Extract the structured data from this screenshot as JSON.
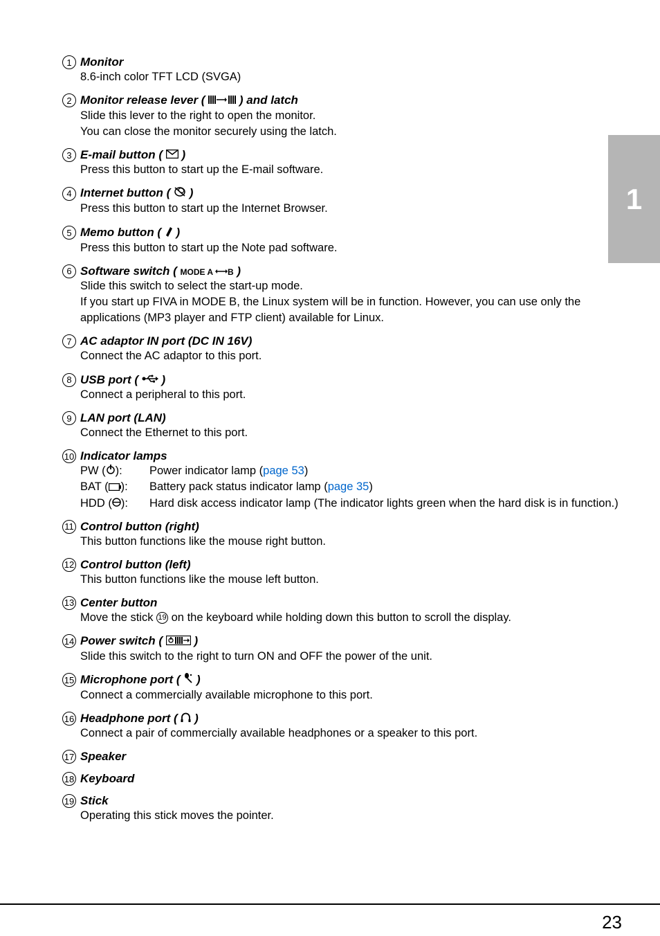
{
  "chapterTab": "1",
  "pageNumber": "23",
  "items": [
    {
      "num": "1",
      "titleParts": [
        "Monitor"
      ],
      "desc": [
        "8.6-inch color TFT LCD (SVGA)"
      ]
    },
    {
      "num": "2",
      "titleParts": [
        "Monitor release lever ( ",
        {
          "icon": "lever"
        },
        " ) and latch"
      ],
      "desc": [
        "Slide this lever to the right to open the monitor.",
        "You can close the monitor securely using the latch."
      ]
    },
    {
      "num": "3",
      "titleParts": [
        "E-mail button ( ",
        {
          "icon": "mail"
        },
        " )"
      ],
      "desc": [
        "Press this button to start up the E-mail software."
      ]
    },
    {
      "num": "4",
      "titleParts": [
        "Internet button ( ",
        {
          "icon": "internet"
        },
        " )"
      ],
      "desc": [
        "Press this button to start up the Internet Browser."
      ]
    },
    {
      "num": "5",
      "titleParts": [
        "Memo button ( ",
        {
          "icon": "memo"
        },
        " )"
      ],
      "desc": [
        "Press this button to start up the Note pad software."
      ]
    },
    {
      "num": "6",
      "titleParts": [
        "Software switch ( ",
        {
          "smallBold": "MODE A "
        },
        {
          "icon": "arrows"
        },
        {
          "smallBold": "B"
        },
        " )"
      ],
      "desc": [
        "Slide this switch to select the start-up mode.",
        "If you start up FIVA in MODE B, the Linux system will be in function. However, you can use only the applications (MP3 player and FTP client) available for Linux."
      ]
    },
    {
      "num": "7",
      "titleParts": [
        "AC adaptor IN port (DC IN 16V)"
      ],
      "desc": [
        "Connect the AC adaptor to this port."
      ]
    },
    {
      "num": "8",
      "titleParts": [
        "USB port ( ",
        {
          "icon": "usb"
        },
        " )"
      ],
      "desc": [
        "Connect a peripheral to this port."
      ]
    },
    {
      "num": "9",
      "titleParts": [
        "LAN port (LAN)"
      ],
      "desc": [
        "Connect the Ethernet to this port."
      ]
    },
    {
      "num": "10",
      "titleParts": [
        "Indicator lamps"
      ],
      "indicators": [
        {
          "labelParts": [
            "PW (",
            {
              "icon": "power"
            },
            "):"
          ],
          "textParts": [
            "Power indicator lamp (",
            {
              "link": "page 53"
            },
            ")"
          ]
        },
        {
          "labelParts": [
            "BAT (",
            {
              "icon": "battery"
            },
            "):"
          ],
          "textParts": [
            "Battery pack status indicator lamp (",
            {
              "link": "page 35"
            },
            ")"
          ]
        },
        {
          "labelParts": [
            "HDD (",
            {
              "icon": "hdd"
            },
            "):"
          ],
          "textParts": [
            "Hard disk access indicator lamp (The indicator lights green when the hard disk is in function.)"
          ]
        }
      ]
    },
    {
      "num": "11",
      "titleParts": [
        "Control button (right)"
      ],
      "desc": [
        "This button functions like the mouse right button."
      ]
    },
    {
      "num": "12",
      "titleParts": [
        "Control button (left)"
      ],
      "desc": [
        "This button functions like the mouse left button."
      ]
    },
    {
      "num": "13",
      "titleParts": [
        "Center button"
      ],
      "descParts": [
        [
          "Move the stick ",
          {
            "circleNum": "19"
          },
          " on the keyboard while holding down this button to scroll the display."
        ]
      ]
    },
    {
      "num": "14",
      "titleParts": [
        "Power switch ( ",
        {
          "icon": "powerswitch"
        },
        " )"
      ],
      "desc": [
        "Slide this switch to the right to turn ON and OFF the power of the unit."
      ]
    },
    {
      "num": "15",
      "titleParts": [
        "Microphone port ( ",
        {
          "icon": "mic"
        },
        " )"
      ],
      "desc": [
        "Connect a commercially available microphone to this port."
      ]
    },
    {
      "num": "16",
      "titleParts": [
        "Headphone port ( ",
        {
          "icon": "headphone"
        },
        " )"
      ],
      "desc": [
        "Connect a pair of commercially available headphones or a speaker to this port."
      ]
    },
    {
      "num": "17",
      "titleParts": [
        "Speaker"
      ]
    },
    {
      "num": "18",
      "titleParts": [
        "Keyboard"
      ]
    },
    {
      "num": "19",
      "titleParts": [
        "Stick"
      ],
      "desc": [
        "Operating this stick moves the pointer."
      ]
    }
  ],
  "icons": {
    "lever": "<svg width='40' height='14' viewBox='0 0 40 14'><rect x='0' y='1' width='2' height='12' fill='#000'/><rect x='3' y='1' width='2' height='12' fill='#000'/><rect x='6' y='1' width='2' height='12' fill='#000'/><rect x='9' y='1' width='2' height='12' fill='#000'/><line x1='12' y1='7' x2='24' y2='7' stroke='#000' stroke-width='1.5'/><polygon points='24,4 27,7 24,10' fill='#000'/><rect x='29' y='1' width='2' height='12' fill='#000'/><rect x='32' y='1' width='2' height='12' fill='#000'/><rect x='35' y='1' width='2' height='12' fill='#000'/><rect x='38' y='1' width='2' height='12' fill='#000'/></svg>",
    "mail": "<svg width='18' height='13' viewBox='0 0 18 13'><rect x='0.5' y='0.5' width='17' height='12' fill='none' stroke='#000' stroke-width='1.5'/><polyline points='0.5,0.5 9,7 17.5,0.5' fill='none' stroke='#000' stroke-width='1.5'/></svg>",
    "internet": "<svg width='18' height='16' viewBox='0 0 18 16'><ellipse cx='9' cy='8' rx='7' ry='6' fill='none' stroke='#000' stroke-width='1.5'/><line x1='2' y1='2' x2='16' y2='14' stroke='#000' stroke-width='1.5'/><ellipse cx='11' cy='6' rx='4' ry='3' transform='rotate(30 11 6)' fill='none' stroke='#000' stroke-width='1.2'/></svg>",
    "memo": "<svg width='12' height='16' viewBox='0 0 12 16'><path d='M2,14 L8,2 L11,4 L5,16 L2,14 Z' fill='#000'/></svg>",
    "arrows": "<svg width='18' height='10' viewBox='0 0 18 10'><line x1='3' y1='5' x2='15' y2='5' stroke='#000' stroke-width='1.5'/><polygon points='3,2 0,5 3,8' fill='#000'/><polygon points='15,2 18,5 15,8' fill='#000'/></svg>",
    "usb": "<svg width='24' height='14' viewBox='0 0 24 14'><circle cx='3' cy='7' r='2.5' fill='#000'/><line x1='3' y1='7' x2='20' y2='7' stroke='#000' stroke-width='1.5'/><path d='M8,7 L11,3 L15,3' stroke='#000' stroke-width='1.5' fill='none'/><circle cx='15' cy='3' r='1.5' fill='#000'/><path d='M10,7 L13,11 L17,11' stroke='#000' stroke-width='1.5' fill='none'/><rect x='16' y='9.5' width='3' height='3' fill='#000'/><polygon points='20,4 24,7 20,10' fill='#000'/></svg>",
    "power": "<svg width='14' height='14' viewBox='0 0 14 14'><circle cx='7' cy='8' r='5' fill='none' stroke='#000' stroke-width='1.5'/><line x1='7' y1='0' x2='7' y2='7' stroke='#000' stroke-width='1.8'/></svg>",
    "battery": "<svg width='18' height='11' viewBox='0 0 18 11'><rect x='0.5' y='0.5' width='15' height='10' fill='none' stroke='#000' stroke-width='1.5'/><rect x='16' y='3' width='2' height='5' fill='#000'/></svg>",
    "hdd": "<svg width='13' height='13' viewBox='0 0 13 13'><circle cx='6.5' cy='6.5' r='5.5' fill='none' stroke='#000' stroke-width='1.5'/><line x1='1' y1='6.5' x2='12' y2='6.5' stroke='#000' stroke-width='1.5'/></svg>",
    "powerswitch": "<svg width='36' height='14' viewBox='0 0 36 14'><rect x='0.5' y='0.5' width='35' height='13' fill='none' stroke='#000' stroke-width='1.3'/><circle cx='7' cy='7' r='3' fill='none' stroke='#000' stroke-width='1.3'/><line x1='7' y1='2' x2='7' y2='6' stroke='#000' stroke-width='1.5'/><rect x='13' y='2' width='2' height='10' fill='#000'/><rect x='16' y='2' width='2' height='10' fill='#000'/><rect x='19' y='2' width='2' height='10' fill='#000'/><rect x='22' y='2' width='2' height='10' fill='#000'/><line x1='25' y1='7' x2='31' y2='7' stroke='#000' stroke-width='1.3'/><polygon points='31,4 34,7 31,10' fill='#000'/></svg>",
    "mic": "<svg width='14' height='16' viewBox='0 0 14 16'><ellipse cx='5' cy='4' rx='3' ry='4' fill='#000'/><line x1='6' y1='8' x2='12' y2='14' stroke='#000' stroke-width='1.8'/><circle cx='11' cy='3' r='1.2' fill='#000'/></svg>",
    "headphone": "<svg width='15' height='14' viewBox='0 0 15 14'><path d='M2,12 L2,7 A5.5,5.5 0 0,1 13,7 L13,12' fill='none' stroke='#000' stroke-width='1.8'/><rect x='0.5' y='10' width='3' height='4' fill='#000'/><rect x='11.5' y='10' width='3' height='4' fill='#000'/></svg>"
  }
}
